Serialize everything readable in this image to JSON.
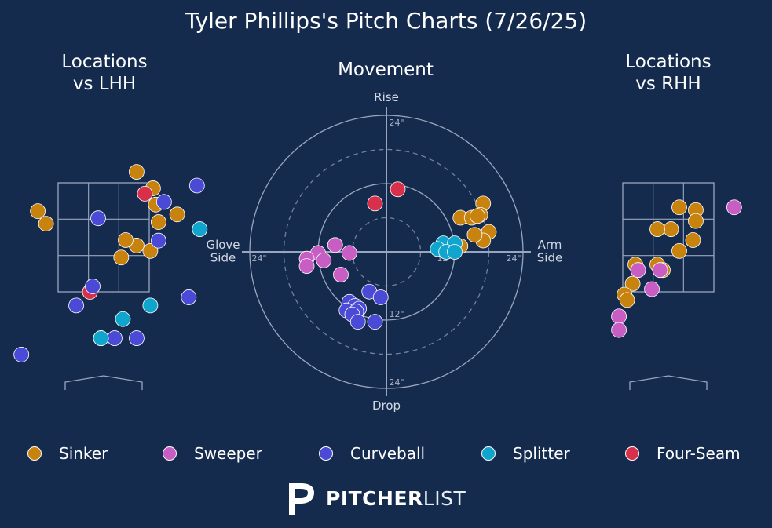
{
  "title": "Tyler Phillips's Pitch Charts (7/26/25)",
  "panels": {
    "lhh_title": "Locations\nvs LHH",
    "movement_title": "Movement",
    "rhh_title": "Locations\nvs RHH"
  },
  "movement_axes": {
    "rise": "Rise",
    "drop": "Drop",
    "glove": "Glove\nSide",
    "arm": "Arm\nSide",
    "ring_labels": [
      "24\"",
      "12\"",
      "24\"",
      "12\"",
      "24\""
    ]
  },
  "colors": {
    "background": "#152b4e",
    "Sinker": "#c8830f",
    "Sweeper": "#c85ec4",
    "Curveball": "#4a4ad6",
    "Splitter": "#10a5cd",
    "Four-Seam": "#d8304a"
  },
  "legend": [
    "Sinker",
    "Sweeper",
    "Curveball",
    "Splitter",
    "Four-Seam"
  ],
  "brand": {
    "bold": "PITCHER",
    "light": "LIST"
  },
  "chart_data": [
    {
      "type": "scatter",
      "title": "Locations vs LHH",
      "units": "feet from plate center / height",
      "xlim": [
        -1.7,
        1.7
      ],
      "ylim": [
        0.4,
        4.8
      ],
      "series": [
        {
          "name": "Sinker",
          "points": [
            [
              0.6,
              3.7
            ],
            [
              1.34,
              2.92
            ],
            [
              0.32,
              2.13
            ],
            [
              0.6,
              2.35
            ],
            [
              1.0,
              2.78
            ],
            [
              0.95,
              3.1
            ],
            [
              0.9,
              3.4
            ],
            [
              0.4,
              2.45
            ],
            [
              0.85,
              2.25
            ],
            [
              -1.2,
              2.98
            ],
            [
              -1.05,
              2.75
            ]
          ]
        },
        {
          "name": "Four-Seam",
          "points": [
            [
              -0.25,
              1.5
            ],
            [
              0.75,
              3.3
            ]
          ]
        },
        {
          "name": "Curveball",
          "points": [
            [
              1.7,
              3.45
            ],
            [
              1.1,
              3.15
            ],
            [
              1.0,
              2.44
            ],
            [
              -0.1,
              2.85
            ],
            [
              1.55,
              1.4
            ],
            [
              -0.2,
              1.6
            ],
            [
              -0.5,
              1.25
            ],
            [
              0.2,
              0.65
            ],
            [
              0.6,
              0.65
            ],
            [
              -0.05,
              0.65
            ],
            [
              -1.5,
              0.35
            ]
          ]
        },
        {
          "name": "Splitter",
          "points": [
            [
              1.75,
              2.65
            ],
            [
              0.85,
              1.25
            ],
            [
              0.35,
              1.0
            ],
            [
              -0.05,
              0.65
            ]
          ]
        }
      ]
    },
    {
      "type": "scatter",
      "title": "Movement",
      "units": "inches",
      "xlim": [
        -24,
        24
      ],
      "ylim": [
        -24,
        24
      ],
      "series": [
        {
          "name": "Sinker",
          "points": [
            [
              17,
              8.5
            ],
            [
              16.5,
              6.5
            ],
            [
              13,
              6
            ],
            [
              15,
              6
            ],
            [
              16,
              6.3
            ],
            [
              18,
              3.5
            ],
            [
              17,
              2
            ],
            [
              15.5,
              3
            ],
            [
              13,
              1
            ]
          ]
        },
        {
          "name": "Sweeper",
          "points": [
            [
              -9,
              1.2
            ],
            [
              -6.5,
              -0.2
            ],
            [
              -12,
              -0.2
            ],
            [
              -14,
              -1.2
            ],
            [
              -11,
              -1.5
            ],
            [
              -14,
              -2.5
            ],
            [
              -8,
              -4
            ]
          ]
        },
        {
          "name": "Curveball",
          "points": [
            [
              -3,
              -7
            ],
            [
              -6.5,
              -8.8
            ],
            [
              -5.5,
              -9.5
            ],
            [
              -4.8,
              -10
            ],
            [
              -7,
              -10.3
            ],
            [
              -5.3,
              -10.5
            ],
            [
              -6,
              -11
            ],
            [
              -5,
              -12.3
            ],
            [
              -2,
              -12.3
            ],
            [
              -1,
              -8
            ]
          ]
        },
        {
          "name": "Splitter",
          "points": [
            [
              10,
              1.5
            ],
            [
              12,
              1.5
            ],
            [
              9,
              0.5
            ],
            [
              10.5,
              0
            ],
            [
              12,
              0
            ]
          ]
        },
        {
          "name": "Four-Seam",
          "points": [
            [
              2,
              11
            ],
            [
              -2,
              8.5
            ]
          ]
        }
      ]
    },
    {
      "type": "scatter",
      "title": "Locations vs RHH",
      "units": "feet from plate center / height",
      "xlim": [
        -1.7,
        1.7
      ],
      "ylim": [
        0.4,
        4.8
      ],
      "series": [
        {
          "name": "Sinker",
          "points": [
            [
              0.5,
              3.0
            ],
            [
              0.5,
              2.8
            ],
            [
              0.45,
              2.45
            ],
            [
              0.2,
              2.25
            ],
            [
              0.05,
              2.65
            ],
            [
              0.2,
              3.05
            ],
            [
              -0.2,
              2.65
            ],
            [
              -0.2,
              2.0
            ],
            [
              -0.6,
              2.0
            ],
            [
              -0.1,
              1.9
            ],
            [
              -0.65,
              1.65
            ],
            [
              -0.8,
              1.45
            ],
            [
              -0.75,
              1.35
            ]
          ]
        },
        {
          "name": "Sweeper",
          "points": [
            [
              1.2,
              3.05
            ],
            [
              -0.15,
              1.9
            ],
            [
              -0.55,
              1.9
            ],
            [
              -0.3,
              1.55
            ],
            [
              -0.9,
              1.05
            ],
            [
              -0.9,
              0.8
            ]
          ]
        }
      ]
    }
  ]
}
